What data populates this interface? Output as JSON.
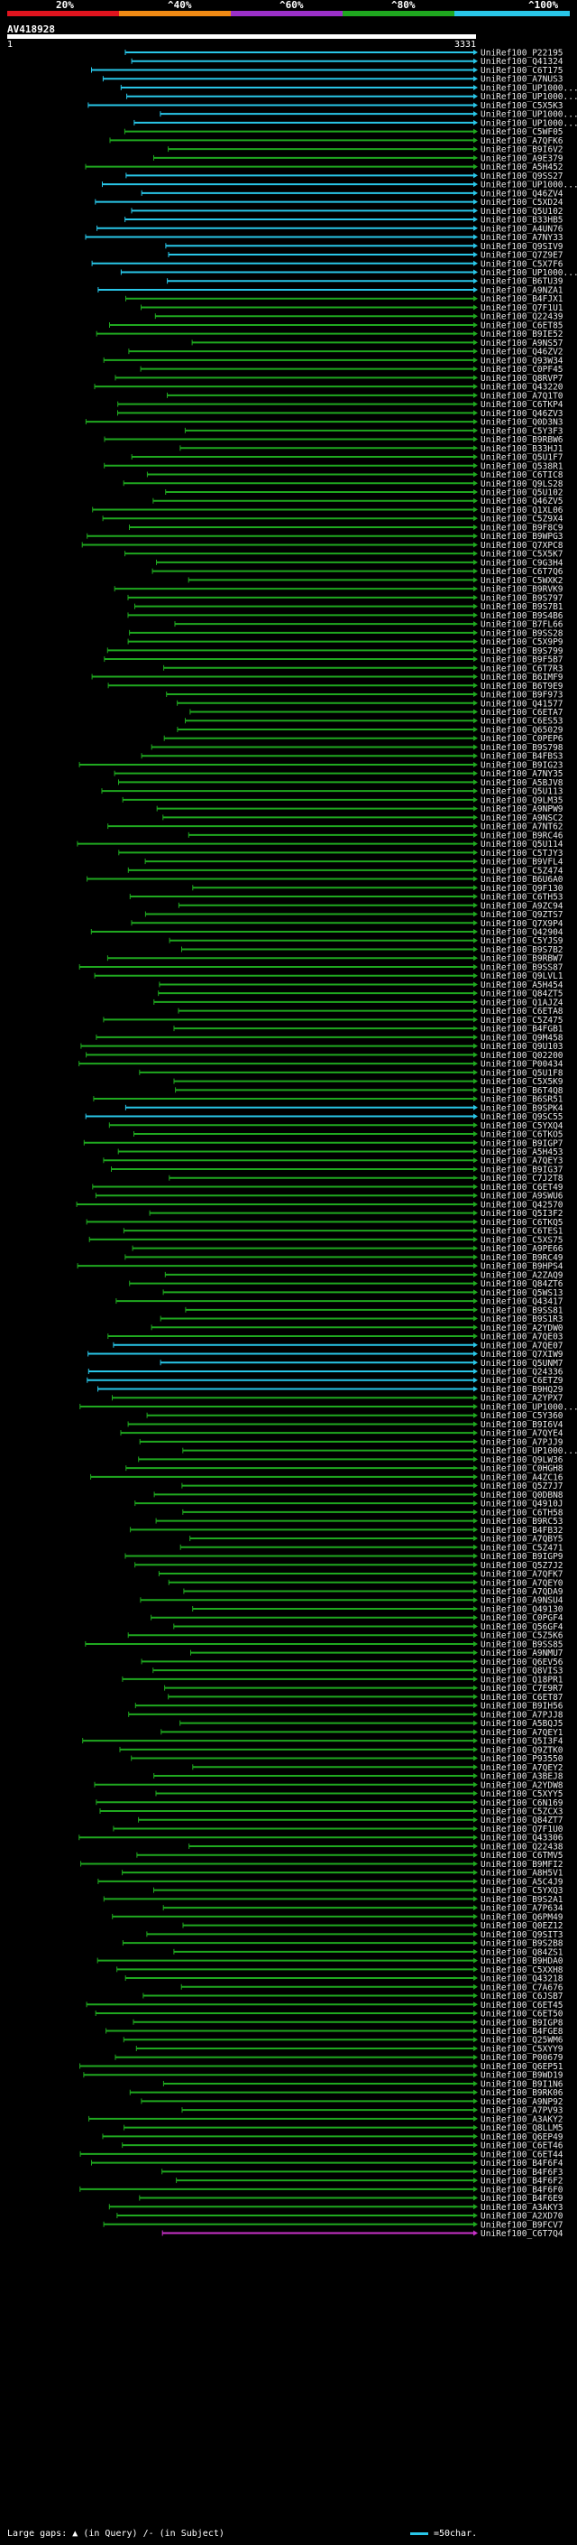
{
  "legend": {
    "labels": [
      "20%",
      "^40%",
      "^60%",
      "^80%",
      "^100%"
    ],
    "colors": [
      "#e0141e",
      "#f08a14",
      "#9b30c8",
      "#1fa81f",
      "#29c6e8"
    ]
  },
  "query": {
    "title": "AV418928",
    "start": "1",
    "end": "3331"
  },
  "hits": [
    "UniRef100_P22195",
    "UniRef100_Q41324",
    "UniRef100_C6T175",
    "UniRef100_A7NUS3",
    "UniRef100_UP1000...",
    "UniRef100_UP1000...",
    "UniRef100_C5X5K3",
    "UniRef100_UP1000...",
    "UniRef100_UP1000...",
    "UniRef100_C5WF05",
    "UniRef100_A7QFK6",
    "UniRef100_B9I6V2",
    "UniRef100_A9E379",
    "UniRef100_A5H452",
    "UniRef100_Q9SS27",
    "UniRef100_UP1000...",
    "UniRef100_Q46ZV4",
    "UniRef100_C5XD24",
    "UniRef100_Q5U102",
    "UniRef100_B33HB5",
    "UniRef100_A4UN76",
    "UniRef100_A7NY33",
    "UniRef100_Q9SIV9",
    "UniRef100_Q7Z9E7",
    "UniRef100_C5X7F6",
    "UniRef100_UP1000...",
    "UniRef100_B6TU39",
    "UniRef100_A9NZA1",
    "UniRef100_B4FJX1",
    "UniRef100_Q7F1U1",
    "UniRef100_Q22439",
    "UniRef100_C6ET85",
    "UniRef100_B9IE52",
    "UniRef100_A9NS57",
    "UniRef100_Q46ZV2",
    "UniRef100_Q93W34",
    "UniRef100_C0PF45",
    "UniRef100_Q8RVP7",
    "UniRef100_Q43220",
    "UniRef100_A7Q1T0",
    "UniRef100_C6TKP4",
    "UniRef100_Q46ZV3",
    "UniRef100_Q0D3N3",
    "UniRef100_C5Y3F3",
    "UniRef100_B9RBW6",
    "UniRef100_B33HJ1",
    "UniRef100_Q5U1F7",
    "UniRef100_Q538R1",
    "UniRef100_C6TIC8",
    "UniRef100_Q9LS28",
    "UniRef100_Q5U102",
    "UniRef100_Q46ZV5",
    "UniRef100_Q1XL06",
    "UniRef100_C5Z9X4",
    "UniRef100_B9F8C9",
    "UniRef100_B9WPG3",
    "UniRef100_Q7XPC8",
    "UniRef100_C5X5K7",
    "UniRef100_C9G3H4",
    "UniRef100_C6T7Q6",
    "UniRef100_C5WXK2",
    "UniRef100_B9RVK9",
    "UniRef100_B9S797",
    "UniRef100_B9S7B1",
    "UniRef100_B9S4B6",
    "UniRef100_B7FL66",
    "UniRef100_B9SS28",
    "UniRef100_C5X9P9",
    "UniRef100_B9S799",
    "UniRef100_B9F5B7",
    "UniRef100_C6T7R3",
    "UniRef100_B6IMF9",
    "UniRef100_B6T9E9",
    "UniRef100_B9F973",
    "UniRef100_Q41577",
    "UniRef100_C6ETA7",
    "UniRef100_C6ES53",
    "UniRef100_Q65029",
    "UniRef100_C0PEP6",
    "UniRef100_B9S798",
    "UniRef100_B4FBS3",
    "UniRef100_B9IG23",
    "UniRef100_A7NY35",
    "UniRef100_A5BJV8",
    "UniRef100_Q5U113",
    "UniRef100_Q9LM35",
    "UniRef100_A9NPW9",
    "UniRef100_A9NSC2",
    "UniRef100_A7NT62",
    "UniRef100_B9RC46",
    "UniRef100_Q5U114",
    "UniRef100_C5TJY3",
    "UniRef100_B9VFL4",
    "UniRef100_C5Z474",
    "UniRef100_B6U6A0",
    "UniRef100_Q9F130",
    "UniRef100_C6TH53",
    "UniRef100_A9ZC94",
    "UniRef100_Q9ZTS7",
    "UniRef100_Q7X9P4",
    "UniRef100_Q42904",
    "UniRef100_C5YJS9",
    "UniRef100_B9S7B2",
    "UniRef100_B9RBW7",
    "UniRef100_B9SS87",
    "UniRef100_Q9LVL1",
    "UniRef100_A5H454",
    "UniRef100_Q84ZT5",
    "UniRef100_Q1AJZ4",
    "UniRef100_C6ETA8",
    "UniRef100_C5Z475",
    "UniRef100_B4FGB1",
    "UniRef100_Q9M458",
    "UniRef100_Q9U103",
    "UniRef100_Q02200",
    "UniRef100_P00434",
    "UniRef100_Q5U1F8",
    "UniRef100_C5X5K9",
    "UniRef100_B6T4Q8",
    "UniRef100_B6SR51",
    "UniRef100_B9SPK4",
    "UniRef100_Q9SC55",
    "UniRef100_C5YXQ4",
    "UniRef100_C6TKO5",
    "UniRef100_B9IGP7",
    "UniRef100_A5H453",
    "UniRef100_A7QEY3",
    "UniRef100_B9IG37",
    "UniRef100_C7J2T8",
    "UniRef100_C6ET49",
    "UniRef100_A9SWU6",
    "UniRef100_Q42570",
    "UniRef100_Q5I3F2",
    "UniRef100_C6TKQ5",
    "UniRef100_C6TES1",
    "UniRef100_C5XS75",
    "UniRef100_A9PE66",
    "UniRef100_B9RC49",
    "UniRef100_B9HPS4",
    "UniRef100_A2ZAQ9",
    "UniRef100_Q84ZT6",
    "UniRef100_Q5WS13",
    "UniRef100_Q43417",
    "UniRef100_B9SS81",
    "UniRef100_B9S1R3",
    "UniRef100_A2YDW0",
    "UniRef100_A7QE03",
    "UniRef100_A7QE07",
    "UniRef100_Q7XIW9",
    "UniRef100_Q5UNM7",
    "UniRef100_Q24336",
    "UniRef100_C6ETZ9",
    "UniRef100_B9HQ29",
    "UniRef100_A2YPX7",
    "UniRef100_UP1000...",
    "UniRef100_C5Y360",
    "UniRef100_B9I6V4",
    "UniRef100_A7QYE4",
    "UniRef100_A7PJJ9",
    "UniRef100_UP1000...",
    "UniRef100_Q9LW36",
    "UniRef100_C0HGH8",
    "UniRef100_A4ZC16",
    "UniRef100_Q5Z7J7",
    "UniRef100_Q0DBN8",
    "UniRef100_Q4910J",
    "UniRef100_C6TH58",
    "UniRef100_B9RC53",
    "UniRef100_B4FB32",
    "UniRef100_A7QBY5",
    "UniRef100_C5Z471",
    "UniRef100_B9IGP9",
    "UniRef100_Q5Z7J2",
    "UniRef100_A7QFK7",
    "UniRef100_A7QEY0",
    "UniRef100_A7QDA9",
    "UniRef100_A9NSU4",
    "UniRef100_Q49130",
    "UniRef100_C0PGF4",
    "UniRef100_Q56GF4",
    "UniRef100_C5Z5K6",
    "UniRef100_B9SS85",
    "UniRef100_A9NMU7",
    "UniRef100_Q6EV56",
    "UniRef100_Q8VIS3",
    "UniRef100_Q18PR1",
    "UniRef100_C7E9R7",
    "UniRef100_C6ET87",
    "UniRef100_B9IH56",
    "UniRef100_A7PJJ8",
    "UniRef100_A5BQJ5",
    "UniRef100_A7QEY1",
    "UniRef100_Q5I3F4",
    "UniRef100_Q9ZTK0",
    "UniRef100_P93550",
    "UniRef100_A7QEY2",
    "UniRef100_A3BEJ8",
    "UniRef100_A2YDW8",
    "UniRef100_C5XYY5",
    "UniRef100_C6N169",
    "UniRef100_C5ZCX3",
    "UniRef100_Q84ZT7",
    "UniRef100_Q7F1U0",
    "UniRef100_Q43306",
    "UniRef100_Q22438",
    "UniRef100_C6TMV5",
    "UniRef100_B9MFI2",
    "UniRef100_A8H5V1",
    "UniRef100_A5C4J9",
    "UniRef100_C5YXQ3",
    "UniRef100_B9S2A1",
    "UniRef100_A7P634",
    "UniRef100_Q6PM49",
    "UniRef100_Q0EZ12",
    "UniRef100_Q9SIT3",
    "UniRef100_B9S2B8",
    "UniRef100_Q84ZS1",
    "UniRef100_B9HDA0",
    "UniRef100_C5XXH8",
    "UniRef100_Q43218",
    "UniRef100_C7A676",
    "UniRef100_C6JSB7",
    "UniRef100_C6ET45",
    "UniRef100_C6ET50",
    "UniRef100_B9IGP8",
    "UniRef100_B4FGE8",
    "UniRef100_Q25WM6",
    "UniRef100_C5XYY9",
    "UniRef100_P00679",
    "UniRef100_Q6EP51",
    "UniRef100_B9WD19",
    "UniRef100_B9I1N6",
    "UniRef100_B9RK06",
    "UniRef100_A9NP92",
    "UniRef100_A7PV93",
    "UniRef100_A3AKY2",
    "UniRef100_Q8LLM5",
    "UniRef100_Q6EP49",
    "UniRef100_C6ET46",
    "UniRef100_C6ET44",
    "UniRef100_B4F6F4",
    "UniRef100_B4F6F3",
    "UniRef100_B4F6F2",
    "UniRef100_B4F6F0",
    "UniRef100_B4F6E9",
    "UniRef100_A3AKY3",
    "UniRef100_A2XD70",
    "UniRef100_B9FCV7",
    "UniRef100_C6T7Q4"
  ],
  "footer": {
    "large_gaps_label": "Large gaps:",
    "in_query": "(in Query)",
    "in_subject": "/- (in Subject)",
    "scale_label": "=50char."
  }
}
